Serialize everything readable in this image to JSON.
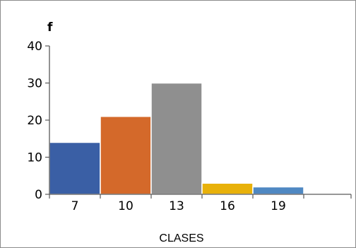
{
  "chart_data": {
    "type": "bar",
    "categories": [
      "7",
      "10",
      "13",
      "16",
      "19"
    ],
    "values": [
      14,
      21,
      30,
      3,
      2
    ],
    "colors": [
      "#3a5fa5",
      "#d4692a",
      "#8f8f8f",
      "#e8b10a",
      "#4f88c2"
    ],
    "xlabel": "CLASES",
    "ylabel": "f",
    "ylim": [
      0,
      40
    ],
    "yticks": [
      "0",
      "10",
      "20",
      "30",
      "40"
    ],
    "grid": false,
    "legend": "none"
  }
}
